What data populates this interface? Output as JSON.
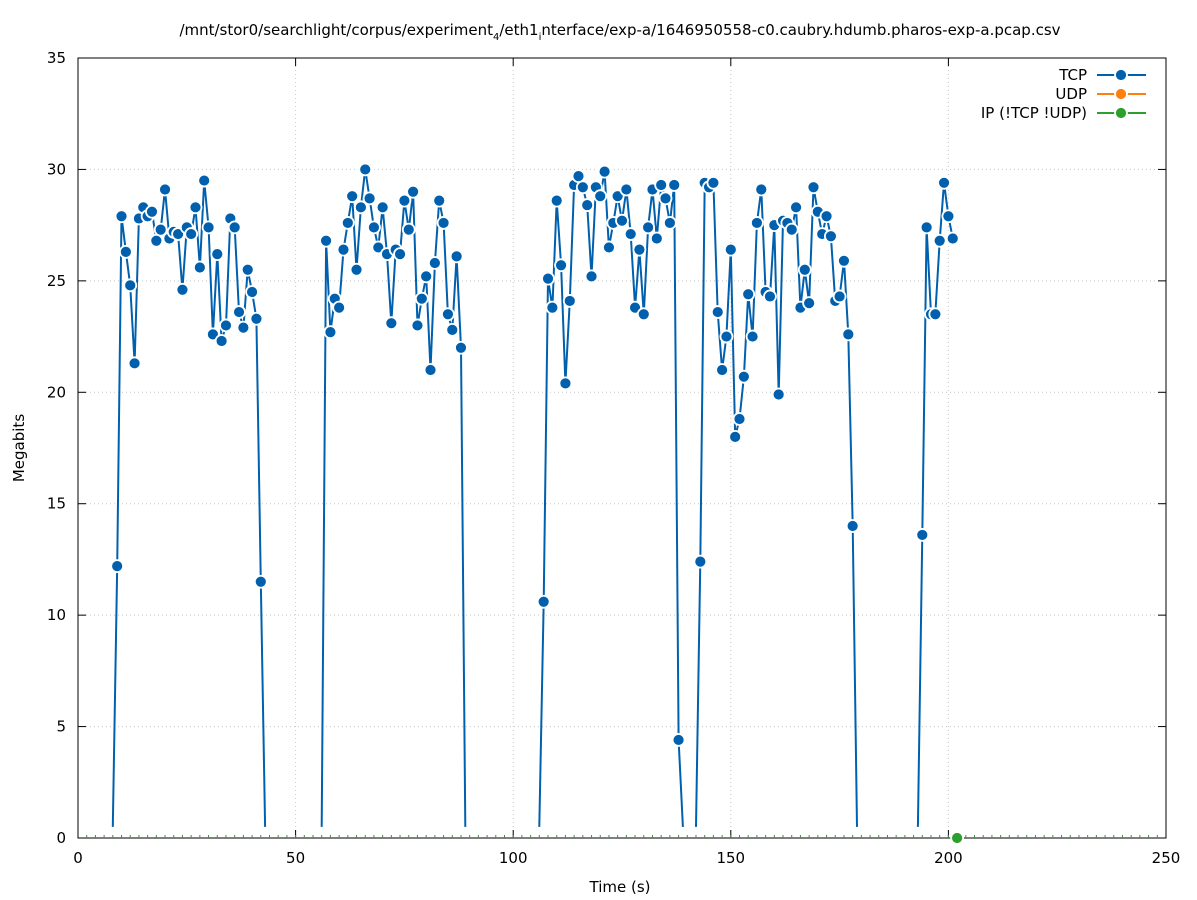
{
  "chart_data": {
    "type": "line",
    "title": "/mnt/stor0/searchlight/corpus/experiment",
    "title_sub1": "4",
    "title_mid": "/eth1",
    "title_sub2": "i",
    "title_end": "nterface/exp-a/1646950558-c0.caubry.hdumb.pharos-exp-a.pcap.csv",
    "xlabel": "Time (s)",
    "ylabel": "Megabits",
    "xlim": [
      0,
      250
    ],
    "ylim": [
      0,
      35
    ],
    "xticks": [
      0,
      50,
      100,
      150,
      200,
      250
    ],
    "yticks": [
      0,
      5,
      10,
      15,
      20,
      25,
      30,
      35
    ],
    "grid": true,
    "legend_position": "top-right",
    "series": [
      {
        "name": "TCP",
        "color": "#0060ad",
        "segments": [
          [
            [
              8,
              0.5
            ],
            [
              9,
              12.2
            ],
            [
              10,
              27.9
            ],
            [
              11,
              26.3
            ],
            [
              12,
              24.8
            ],
            [
              13,
              21.3
            ],
            [
              14,
              27.8
            ],
            [
              15,
              28.3
            ],
            [
              16,
              27.9
            ],
            [
              17,
              28.1
            ],
            [
              18,
              26.8
            ],
            [
              19,
              27.3
            ],
            [
              20,
              29.1
            ],
            [
              21,
              26.9
            ],
            [
              22,
              27.2
            ],
            [
              23,
              27.1
            ],
            [
              24,
              24.6
            ],
            [
              25,
              27.4
            ],
            [
              26,
              27.1
            ],
            [
              27,
              28.3
            ],
            [
              28,
              25.6
            ],
            [
              29,
              29.5
            ],
            [
              30,
              27.4
            ],
            [
              31,
              22.6
            ],
            [
              32,
              26.2
            ],
            [
              33,
              22.3
            ],
            [
              34,
              23.0
            ],
            [
              35,
              27.8
            ],
            [
              36,
              27.4
            ],
            [
              37,
              23.6
            ],
            [
              38,
              22.9
            ],
            [
              39,
              25.5
            ],
            [
              40,
              24.5
            ],
            [
              41,
              23.3
            ],
            [
              42,
              11.5
            ],
            [
              43,
              0.5
            ]
          ],
          [
            [
              56,
              0.5
            ],
            [
              57,
              26.8
            ],
            [
              58,
              22.7
            ],
            [
              59,
              24.2
            ],
            [
              60,
              23.8
            ],
            [
              61,
              26.4
            ],
            [
              62,
              27.6
            ],
            [
              63,
              28.8
            ],
            [
              64,
              25.5
            ],
            [
              65,
              28.3
            ],
            [
              66,
              30.0
            ],
            [
              67,
              28.7
            ],
            [
              68,
              27.4
            ],
            [
              69,
              26.5
            ],
            [
              70,
              28.3
            ],
            [
              71,
              26.2
            ],
            [
              72,
              23.1
            ],
            [
              73,
              26.4
            ],
            [
              74,
              26.2
            ],
            [
              75,
              28.6
            ],
            [
              76,
              27.3
            ],
            [
              77,
              29.0
            ],
            [
              78,
              23.0
            ],
            [
              79,
              24.2
            ],
            [
              80,
              25.2
            ],
            [
              81,
              21.0
            ],
            [
              82,
              25.8
            ],
            [
              83,
              28.6
            ],
            [
              84,
              27.6
            ],
            [
              85,
              23.5
            ],
            [
              86,
              22.8
            ],
            [
              87,
              26.1
            ],
            [
              88,
              22.0
            ],
            [
              89,
              0.5
            ]
          ],
          [
            [
              106,
              0.5
            ],
            [
              107,
              10.6
            ],
            [
              108,
              25.1
            ],
            [
              109,
              23.8
            ],
            [
              110,
              28.6
            ],
            [
              111,
              25.7
            ],
            [
              112,
              20.4
            ],
            [
              113,
              24.1
            ],
            [
              114,
              29.3
            ],
            [
              115,
              29.7
            ],
            [
              116,
              29.2
            ],
            [
              117,
              28.4
            ],
            [
              118,
              25.2
            ],
            [
              119,
              29.2
            ],
            [
              120,
              28.8
            ],
            [
              121,
              29.9
            ],
            [
              122,
              26.5
            ],
            [
              123,
              27.6
            ],
            [
              124,
              28.8
            ],
            [
              125,
              27.7
            ],
            [
              126,
              29.1
            ],
            [
              127,
              27.1
            ],
            [
              128,
              23.8
            ],
            [
              129,
              26.4
            ],
            [
              130,
              23.5
            ],
            [
              131,
              27.4
            ],
            [
              132,
              29.1
            ],
            [
              133,
              26.9
            ],
            [
              134,
              29.3
            ],
            [
              135,
              28.7
            ],
            [
              136,
              27.6
            ],
            [
              137,
              29.3
            ],
            [
              138,
              4.4
            ],
            [
              139,
              0.5
            ]
          ],
          [
            [
              142,
              0.5
            ],
            [
              143,
              12.4
            ],
            [
              144,
              29.4
            ],
            [
              145,
              29.2
            ],
            [
              146,
              29.4
            ],
            [
              147,
              23.6
            ],
            [
              148,
              21.0
            ],
            [
              149,
              22.5
            ],
            [
              150,
              26.4
            ],
            [
              151,
              18.0
            ],
            [
              152,
              18.8
            ],
            [
              153,
              20.7
            ],
            [
              154,
              24.4
            ],
            [
              155,
              22.5
            ],
            [
              156,
              27.6
            ],
            [
              157,
              29.1
            ],
            [
              158,
              24.5
            ],
            [
              159,
              24.3
            ],
            [
              160,
              27.5
            ],
            [
              161,
              19.9
            ],
            [
              162,
              27.7
            ],
            [
              163,
              27.6
            ],
            [
              164,
              27.3
            ],
            [
              165,
              28.3
            ],
            [
              166,
              23.8
            ],
            [
              167,
              25.5
            ],
            [
              168,
              24.0
            ],
            [
              169,
              29.2
            ],
            [
              170,
              28.1
            ],
            [
              171,
              27.1
            ],
            [
              172,
              27.9
            ],
            [
              173,
              27.0
            ],
            [
              174,
              24.1
            ],
            [
              175,
              24.3
            ],
            [
              176,
              25.9
            ],
            [
              177,
              22.6
            ],
            [
              178,
              14.0
            ],
            [
              179,
              0.5
            ]
          ],
          [
            [
              193,
              0.5
            ],
            [
              194,
              13.6
            ],
            [
              195,
              27.4
            ],
            [
              196,
              23.5
            ],
            [
              197,
              23.5
            ],
            [
              198,
              26.8
            ],
            [
              199,
              29.4
            ],
            [
              200,
              27.9
            ],
            [
              201,
              26.9
            ]
          ]
        ]
      },
      {
        "name": "UDP",
        "color": "#ff7f0e",
        "segments": []
      },
      {
        "name": "IP (!TCP  !UDP)",
        "color": "#2ca02c",
        "segments": [
          [
            [
              202,
              0
            ]
          ]
        ]
      }
    ]
  }
}
